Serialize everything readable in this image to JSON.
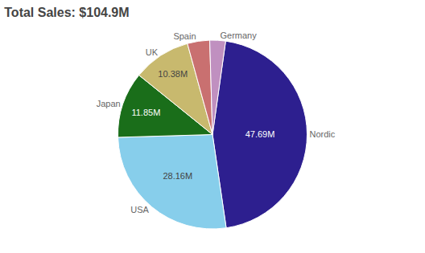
{
  "chart_data": {
    "type": "pie",
    "title": "Total Sales: $104.9M",
    "categories": [
      "Nordic",
      "USA",
      "Japan",
      "UK",
      "Spain",
      "Germany"
    ],
    "values": [
      47.69,
      28.16,
      11.85,
      10.38,
      4.0,
      2.82
    ],
    "value_labels": [
      "47.69M",
      "28.16M",
      "11.85M",
      "10.38M",
      null,
      null
    ],
    "colors": [
      "#2d1f8f",
      "#87ceeb",
      "#1a6e1a",
      "#c8b96e",
      "#c97070",
      "#c090c0"
    ],
    "data_labels": true
  }
}
